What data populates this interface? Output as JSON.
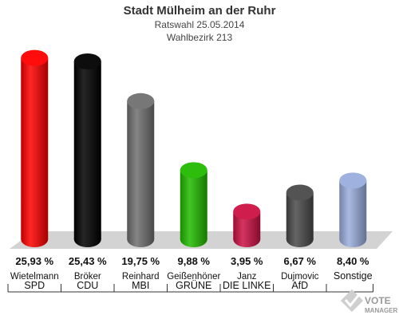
{
  "header": {
    "title": "Stadt Mülheim an der Ruhr",
    "subtitle": "Ratswahl 25.05.2014",
    "district": "Wahlbezirk 213"
  },
  "chart_data": {
    "type": "bar",
    "title": "Stadt Mülheim an der Ruhr",
    "categories": [
      "SPD",
      "CDU",
      "MBI",
      "GRÜNE",
      "DIE LINKE",
      "AfD",
      "Sonstige"
    ],
    "candidates": [
      "Wietelmann",
      "Bröker",
      "Reinhard",
      "Geißenhöner",
      "Janz",
      "Dujmovic",
      ""
    ],
    "values": [
      25.93,
      25.43,
      19.75,
      9.88,
      3.95,
      6.67,
      8.4
    ],
    "value_labels": [
      "25,93 %",
      "25,43 %",
      "19,75 %",
      "9,88 %",
      "3,95 %",
      "6,67 %",
      "8,40 %"
    ],
    "colors": [
      "#ff0000",
      "#000000",
      "#707070",
      "#22bb00",
      "#cc1144",
      "#4a4a4a",
      "#9aaedd"
    ],
    "ylim": [
      0,
      26
    ],
    "xlabel": "",
    "ylabel": "",
    "grid": false
  },
  "logo": {
    "line1": "VOTE",
    "line2": "MANAGER"
  }
}
